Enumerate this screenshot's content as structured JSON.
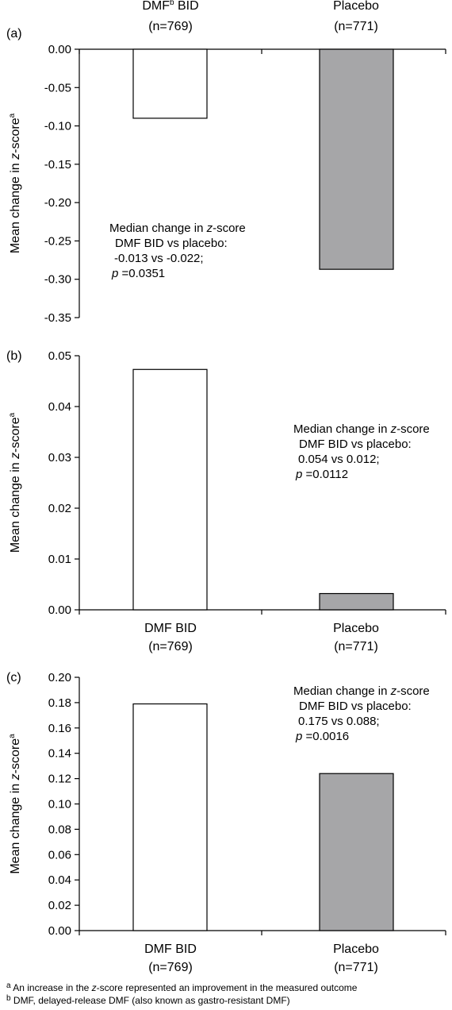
{
  "chart_data": [
    {
      "type": "bar",
      "panel_label": "(a)",
      "categories": [
        "DMF BID",
        "Placebo"
      ],
      "category_labels": [
        {
          "name": "DMF",
          "superscript": "b",
          "suffix": " BID",
          "n": "(n=769)"
        },
        {
          "name": "Placebo",
          "superscript": "",
          "suffix": "",
          "n": "(n=771)"
        }
      ],
      "category_position": "top",
      "values": [
        -0.09,
        -0.287
      ],
      "bar_colors": [
        "#ffffff",
        "#a6a6a8"
      ],
      "ylim": [
        -0.35,
        0.0
      ],
      "ticks": [
        "0.00",
        "-0.05",
        "-0.10",
        "-0.15",
        "-0.20",
        "-0.25",
        "-0.30",
        "-0.35"
      ],
      "tick_values": [
        0.0,
        -0.05,
        -0.1,
        -0.15,
        -0.2,
        -0.25,
        -0.3,
        -0.35
      ],
      "ylabel": {
        "prefix": "Mean change in ",
        "italic": "z",
        "suffix": "-score",
        "superscript": "a"
      },
      "annotation": {
        "line1_prefix": "Median change in ",
        "line1_italic": "z",
        "line1_suffix": "-score",
        "line2": "DMF BID vs placebo:",
        "line3": "-0.013 vs -0.022;",
        "line4_italic": "p",
        "line4_suffix": " =0.0351"
      },
      "grid": false
    },
    {
      "type": "bar",
      "panel_label": "(b)",
      "categories": [
        "DMF BID",
        "Placebo"
      ],
      "category_labels": [
        {
          "name": "DMF BID",
          "superscript": "",
          "suffix": "",
          "n": "(n=769)"
        },
        {
          "name": "Placebo",
          "superscript": "",
          "suffix": "",
          "n": "(n=771)"
        }
      ],
      "category_position": "bottom",
      "values": [
        0.0473,
        0.0032
      ],
      "bar_colors": [
        "#ffffff",
        "#a6a6a8"
      ],
      "ylim": [
        0.0,
        0.05
      ],
      "ticks": [
        "0.00",
        "0.01",
        "0.02",
        "0.03",
        "0.04",
        "0.05"
      ],
      "tick_values": [
        0.0,
        0.01,
        0.02,
        0.03,
        0.04,
        0.05
      ],
      "ylabel": {
        "prefix": "Mean change in ",
        "italic": "z",
        "suffix": "-score",
        "superscript": "a"
      },
      "annotation": {
        "line1_prefix": "Median change in ",
        "line1_italic": "z",
        "line1_suffix": "-score",
        "line2": "DMF BID vs placebo:",
        "line3": "0.054 vs 0.012;",
        "line4_italic": "p",
        "line4_suffix": " =0.0112"
      },
      "grid": false
    },
    {
      "type": "bar",
      "panel_label": "(c)",
      "categories": [
        "DMF BID",
        "Placebo"
      ],
      "category_labels": [
        {
          "name": "DMF BID",
          "superscript": "",
          "suffix": "",
          "n": "(n=769)"
        },
        {
          "name": "Placebo",
          "superscript": "",
          "suffix": "",
          "n": "(n=771)"
        }
      ],
      "category_position": "bottom",
      "values": [
        0.179,
        0.124
      ],
      "bar_colors": [
        "#ffffff",
        "#a6a6a8"
      ],
      "ylim": [
        0.0,
        0.2
      ],
      "ticks": [
        "0.00",
        "0.02",
        "0.04",
        "0.06",
        "0.08",
        "0.10",
        "0.12",
        "0.14",
        "0.16",
        "0.18",
        "0.20"
      ],
      "tick_values": [
        0.0,
        0.02,
        0.04,
        0.06,
        0.08,
        0.1,
        0.12,
        0.14,
        0.16,
        0.18,
        0.2
      ],
      "ylabel": {
        "prefix": "Mean change in ",
        "italic": "z",
        "suffix": "-score",
        "superscript": "a"
      },
      "annotation": {
        "line1_prefix": "Median change in ",
        "line1_italic": "z",
        "line1_suffix": "-score",
        "line2": "DMF BID vs placebo:",
        "line3": "0.175 vs 0.088;",
        "line4_italic": "p",
        "line4_suffix": " =0.0016"
      },
      "grid": false
    }
  ],
  "footnotes": [
    {
      "mark": "a",
      "prefix": " An increase in the ",
      "italic": "z",
      "suffix": "-score represented an improvement in the measured outcome"
    },
    {
      "mark": "b",
      "prefix": " DMF, delayed-release DMF (also known as gastro-resistant DMF)",
      "italic": "",
      "suffix": ""
    }
  ]
}
